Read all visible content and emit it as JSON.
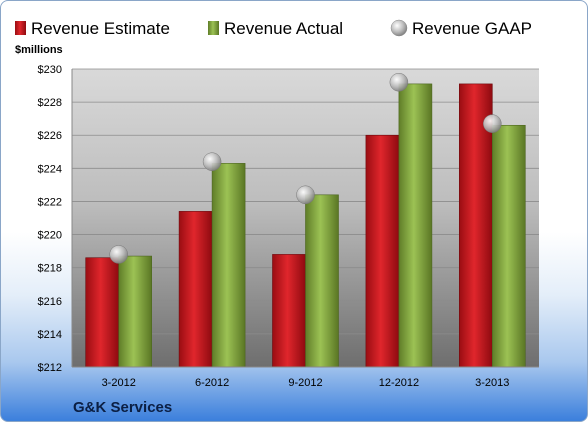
{
  "chart_data": {
    "type": "bar",
    "unit_label": "$millions",
    "categories": [
      "3-2012",
      "6-2012",
      "9-2012",
      "12-2012",
      "3-2013"
    ],
    "series": [
      {
        "name": "Revenue Estimate",
        "type": "bar",
        "color": "#c8141e",
        "values": [
          218.6,
          221.4,
          218.8,
          226.0,
          229.1
        ]
      },
      {
        "name": "Revenue Actual",
        "type": "bar",
        "color": "#7fa23a",
        "values": [
          218.7,
          224.3,
          222.4,
          229.1,
          226.6
        ]
      },
      {
        "name": "Revenue GAAP",
        "type": "marker",
        "color": "#b8b8b8",
        "values": [
          218.8,
          224.4,
          222.4,
          229.2,
          226.7
        ]
      }
    ],
    "y_ticks": [
      "$212",
      "$214",
      "$216",
      "$218",
      "$220",
      "$222",
      "$224",
      "$226",
      "$228",
      "$230"
    ],
    "ylim": [
      212,
      230
    ],
    "grid": true,
    "legend_position": "top"
  },
  "footer": {
    "company": "G&K Services"
  }
}
